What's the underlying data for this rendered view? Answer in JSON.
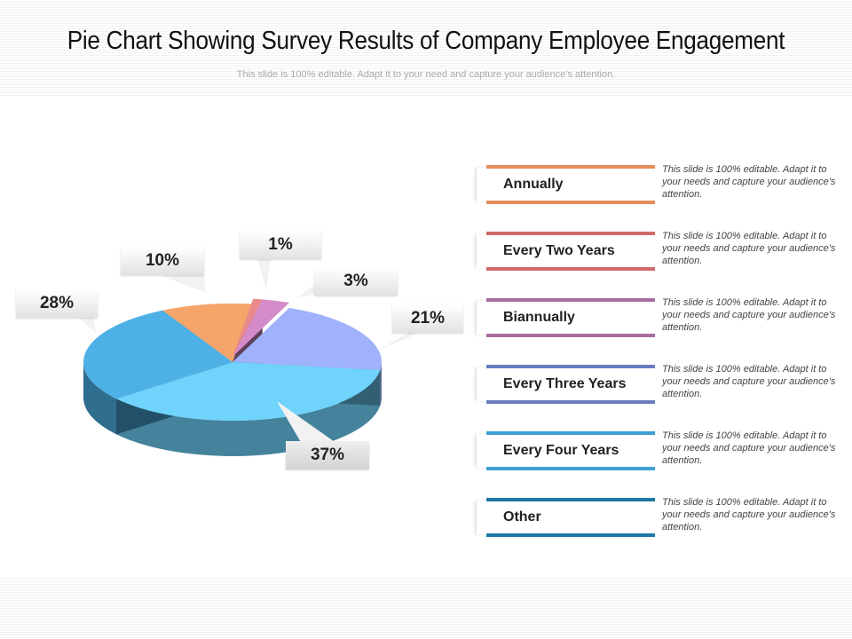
{
  "header": {
    "title": "Pie Chart Showing Survey Results of Company Employee Engagement",
    "subtitle": "This slide is 100% editable. Adapt it to your need and capture your audience's attention."
  },
  "chart_data": {
    "type": "pie",
    "style": "3d",
    "categories": [
      "Annually",
      "Every Two Years",
      "Biannually",
      "Every Three Years",
      "Every Four Years",
      "Other"
    ],
    "values": [
      10,
      1,
      3,
      21,
      37,
      28
    ],
    "labels": [
      "10%",
      "1%",
      "3%",
      "21%",
      "37%",
      "28%"
    ],
    "colors": [
      "#f5a46a",
      "#e98a8a",
      "#d48bc8",
      "#9fb2fb",
      "#6fd3fb",
      "#4eb1e6"
    ],
    "legend_placement": "right"
  },
  "legend": {
    "items": [
      {
        "label": "Annually",
        "color": "#e58e5c",
        "desc": "This slide is 100% editable. Adapt it to your needs and capture your audience's attention."
      },
      {
        "label": "Every Two Years",
        "color": "#d06a6a",
        "desc": "This slide is 100% editable. Adapt it to your needs and capture your audience's attention."
      },
      {
        "label": "Biannually",
        "color": "#a86ca0",
        "desc": "This slide is 100% editable. Adapt it to your needs and capture your audience's attention."
      },
      {
        "label": "Every Three Years",
        "color": "#6a7cc0",
        "desc": "This slide is 100% editable. Adapt it to your needs and capture your audience's attention."
      },
      {
        "label": "Every Four Years",
        "color": "#3ea0d4",
        "desc": "This slide is 100% editable. Adapt it to your needs and capture your audience's attention."
      },
      {
        "label": "Other",
        "color": "#1e78a8",
        "desc": "This slide is 100% editable. Adapt it to your needs and capture your audience's attention."
      }
    ]
  }
}
